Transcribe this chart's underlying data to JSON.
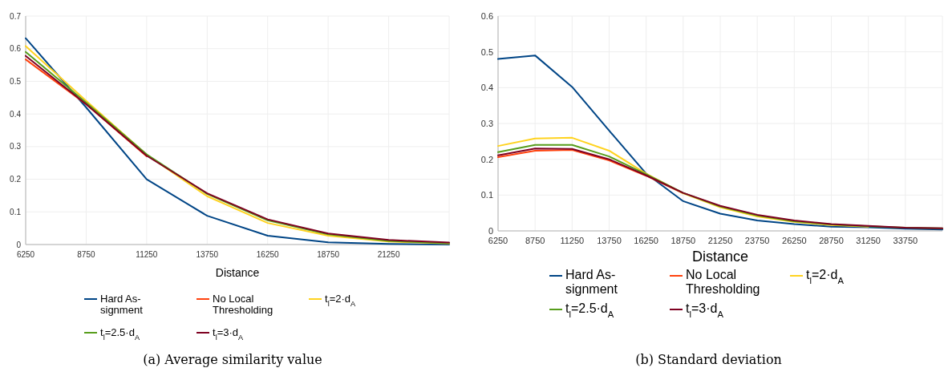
{
  "chart_data": [
    {
      "type": "line",
      "title": "(a)  Average similarity value",
      "xlabel": "Distance",
      "categories": [
        "6250",
        "8750",
        "11250",
        "13750",
        "16250",
        "18750",
        "21250",
        null
      ],
      "ylim": [
        0,
        0.7
      ],
      "yticks": [
        0,
        0.1,
        0.2,
        0.3,
        0.4,
        0.5,
        0.6,
        0.7
      ],
      "grid": true,
      "legend": "bottom",
      "series": [
        {
          "name": "Hard As-\nsignment",
          "color": "#004586",
          "values": [
            0.632,
            0.42,
            0.2,
            0.088,
            0.027,
            0.007,
            0.002,
            0.0
          ]
        },
        {
          "name": "No Local\nThresholding",
          "color": "#ff420e",
          "values": [
            0.567,
            0.43,
            0.27,
            null,
            null,
            null,
            null,
            null
          ]
        },
        {
          "name": "t$_{l}$=2·d$_{A}$",
          "color": "#ffd320",
          "values": [
            0.608,
            0.44,
            0.275,
            0.148,
            0.066,
            0.027,
            0.009,
            0.003
          ]
        },
        {
          "name": "t$_{l}$=2.5·d$_{A}$",
          "color": "#579d1c",
          "values": [
            0.59,
            0.435,
            0.276,
            0.155,
            0.074,
            0.031,
            0.011,
            0.004
          ]
        },
        {
          "name": "t$_{l}$=3·d$_{A}$",
          "color": "#7e0021",
          "values": [
            0.578,
            0.43,
            0.272,
            0.157,
            0.077,
            0.034,
            0.014,
            0.006
          ]
        }
      ]
    },
    {
      "type": "line",
      "title": "(b)  Standard deviation",
      "xlabel": "Distance",
      "categories": [
        "6250",
        "8750",
        "11250",
        "13750",
        "16250",
        "18750",
        "21250",
        "23750",
        "26250",
        "28750",
        "31250",
        "33750",
        null
      ],
      "ylim": [
        0,
        0.6
      ],
      "yticks": [
        0,
        0.1,
        0.2,
        0.3,
        0.4,
        0.5,
        0.6
      ],
      "grid": true,
      "legend": "bottom",
      "series": [
        {
          "name": "Hard As-\nsignment",
          "color": "#004586",
          "values": [
            0.48,
            0.49,
            0.402,
            0.28,
            0.16,
            0.083,
            0.048,
            0.029,
            0.019,
            0.012,
            0.01,
            0.006,
            0.004
          ]
        },
        {
          "name": "No Local\nThresholding",
          "color": "#ff420e",
          "values": [
            0.206,
            0.224,
            0.226,
            0.197,
            0.154,
            0.105,
            null,
            null,
            null,
            null,
            null,
            null,
            null
          ]
        },
        {
          "name": "t$_{l}$=2·d$_{A}$",
          "color": "#ffd320",
          "values": [
            0.237,
            0.258,
            0.26,
            0.224,
            0.16,
            0.105,
            0.066,
            0.04,
            0.025,
            0.016,
            0.012,
            null,
            null
          ]
        },
        {
          "name": "t$_{l}$=2.5·d$_{A}$",
          "color": "#579d1c",
          "values": [
            0.22,
            0.24,
            0.24,
            0.208,
            0.158,
            0.106,
            0.068,
            0.043,
            0.027,
            0.018,
            0.013,
            0.009,
            0.007
          ]
        },
        {
          "name": "t$_{l}$=3·d$_{A}$",
          "color": "#7e0021",
          "values": [
            0.211,
            0.23,
            0.229,
            0.2,
            0.155,
            0.106,
            0.07,
            0.045,
            0.029,
            0.019,
            0.014,
            0.009,
            0.007
          ]
        }
      ]
    }
  ]
}
